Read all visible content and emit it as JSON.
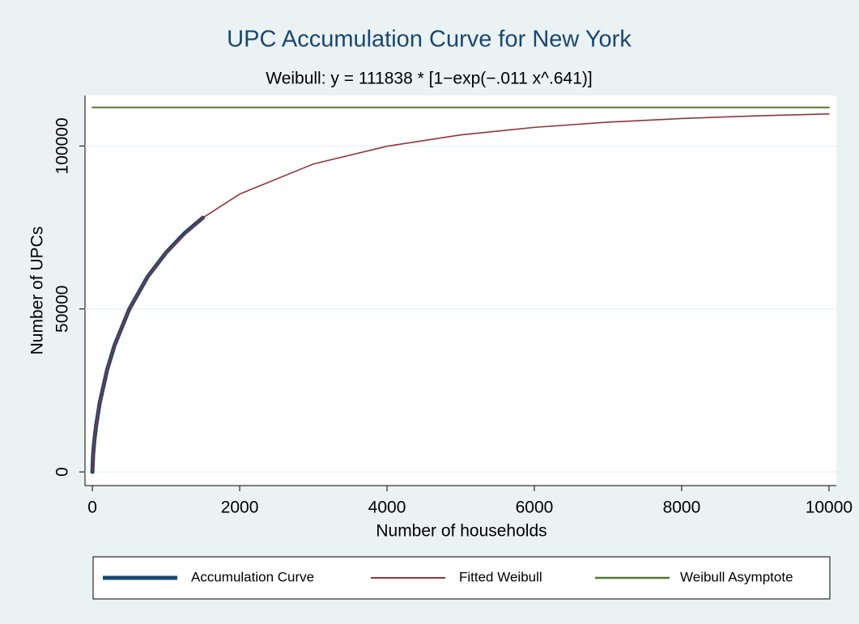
{
  "chart_data": {
    "type": "line",
    "title": "UPC Accumulation Curve for New York",
    "subtitle": "Weibull: y = 111838 * [1−exp(−.011 x^.641)]",
    "x_label": "Number of households",
    "y_label": "Number of UPCs",
    "xlim": [
      -100,
      10100
    ],
    "xticks": [
      0,
      2000,
      4000,
      6000,
      8000,
      10000
    ],
    "ylim": [
      -4200,
      115500
    ],
    "yticks": [
      0,
      50000,
      100000
    ],
    "grid": true,
    "legend": "bottom",
    "series": [
      {
        "name": "Accumulation Curve",
        "color": "#1a476f",
        "width": 5,
        "x": [
          0,
          10,
          25,
          50,
          100,
          200,
          300,
          500,
          750,
          1000,
          1250,
          1500
        ],
        "values": [
          0,
          5300,
          9300,
          14100,
          21200,
          31300,
          38800,
          49900,
          59900,
          67300,
          73200,
          78000
        ]
      },
      {
        "name": "Fitted Weibull",
        "color": "#90353b",
        "width": 1.6,
        "x": [
          0,
          10,
          25,
          50,
          100,
          200,
          300,
          500,
          750,
          1000,
          1500,
          2000,
          3000,
          4000,
          5000,
          6000,
          7000,
          8000,
          9000,
          10000
        ],
        "values": [
          0,
          5255,
          9280,
          14134,
          21238,
          31305,
          38785,
          49891,
          59867,
          67338,
          77980,
          85254,
          94482,
          99927,
          103406,
          105720,
          107320,
          108438,
          109254,
          109847
        ]
      },
      {
        "name": "Weibull Asymptote",
        "color": "#55752f",
        "width": 2,
        "x": [
          0,
          10000
        ],
        "values": [
          111838,
          111838
        ]
      }
    ]
  }
}
